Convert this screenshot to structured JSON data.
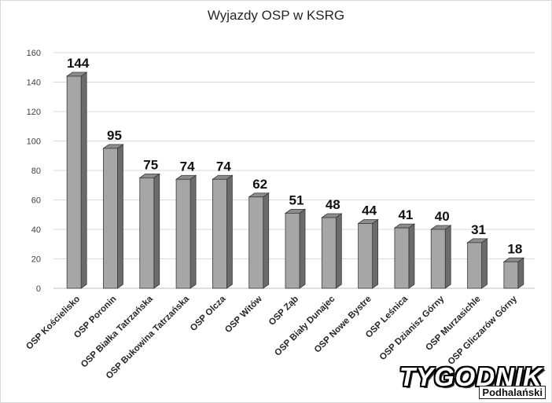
{
  "chart_data": {
    "type": "bar",
    "title": "Wyjazdy OSP w KSRG",
    "categories": [
      "OSP Kościelisko",
      "OSP Poronin",
      "OSP Białka Tatrzańska",
      "OSP Bukowina Tatrzańska",
      "OSP Olcza",
      "OSP Witów",
      "OSP Ząb",
      "OSP Biały Dunajec",
      "OSP Nowe Bystre",
      "OSP Leśnica",
      "OSP Dzianisz Górny",
      "OSP Murzasichle",
      "OSP Gliczarów Górny"
    ],
    "values": [
      144,
      95,
      75,
      74,
      74,
      62,
      51,
      48,
      44,
      41,
      40,
      31,
      18
    ],
    "ylim": [
      0,
      160
    ],
    "yticks": [
      "0",
      "20",
      "40",
      "60",
      "80",
      "100",
      "120",
      "140",
      "160"
    ],
    "grid": true,
    "data_labels": true,
    "colors": {
      "bar_front": "#a6a6a6",
      "bar_side": "#6b6b6b",
      "bar_top": "#8c8c8c",
      "gridline": "#d9d9d9"
    }
  },
  "watermark": {
    "brand": "TYGODNIK",
    "sub": "Podhalański"
  }
}
